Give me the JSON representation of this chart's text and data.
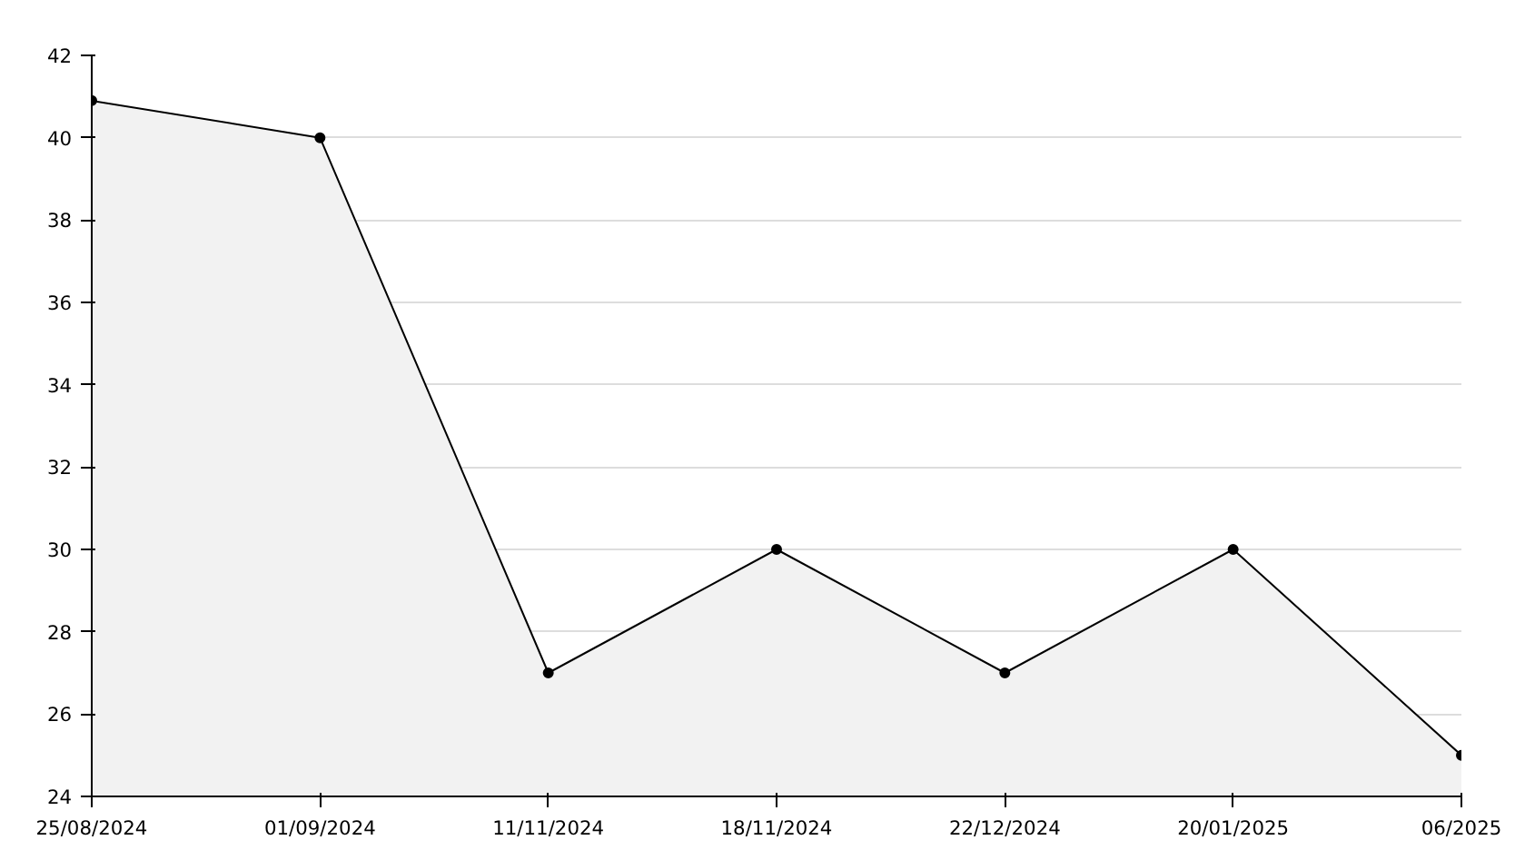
{
  "chart_data": {
    "type": "area",
    "categories": [
      "25/08/2024",
      "01/09/2024",
      "11/11/2024",
      "18/11/2024",
      "22/12/2024",
      "20/01/2025",
      "06/2025"
    ],
    "series": [
      {
        "color": "#000000",
        "values": [
          40.9,
          40,
          27,
          30,
          27,
          30,
          25
        ]
      }
    ],
    "ylim": [
      24,
      42
    ],
    "yticks": [
      24,
      26,
      28,
      30,
      32,
      34,
      36,
      38,
      40,
      42
    ],
    "grid": "y",
    "marker": "circle",
    "line_style": "solid"
  }
}
